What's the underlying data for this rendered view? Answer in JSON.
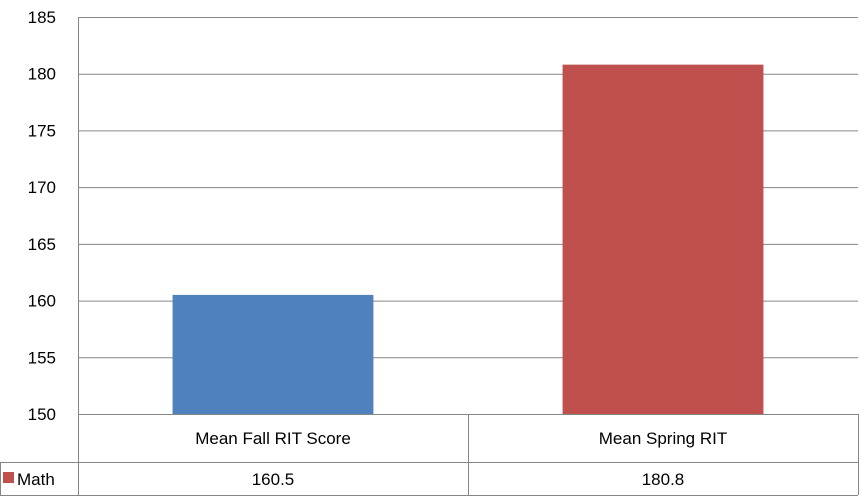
{
  "chart_data": {
    "type": "bar",
    "title": "",
    "xlabel": "",
    "ylabel": "",
    "ylim": [
      150,
      185
    ],
    "yticks": [
      150,
      155,
      160,
      165,
      170,
      175,
      180,
      185
    ],
    "grid": true,
    "legend": "data-table",
    "categories": [
      "Mean Fall RIT Score",
      "Mean Spring RIT"
    ],
    "series": [
      {
        "name": "Math",
        "values": [
          160.5,
          180.8
        ],
        "value_labels": [
          "160.5",
          "180.8"
        ],
        "colors": [
          "#4f81bd",
          "#c0504d"
        ]
      }
    ]
  }
}
